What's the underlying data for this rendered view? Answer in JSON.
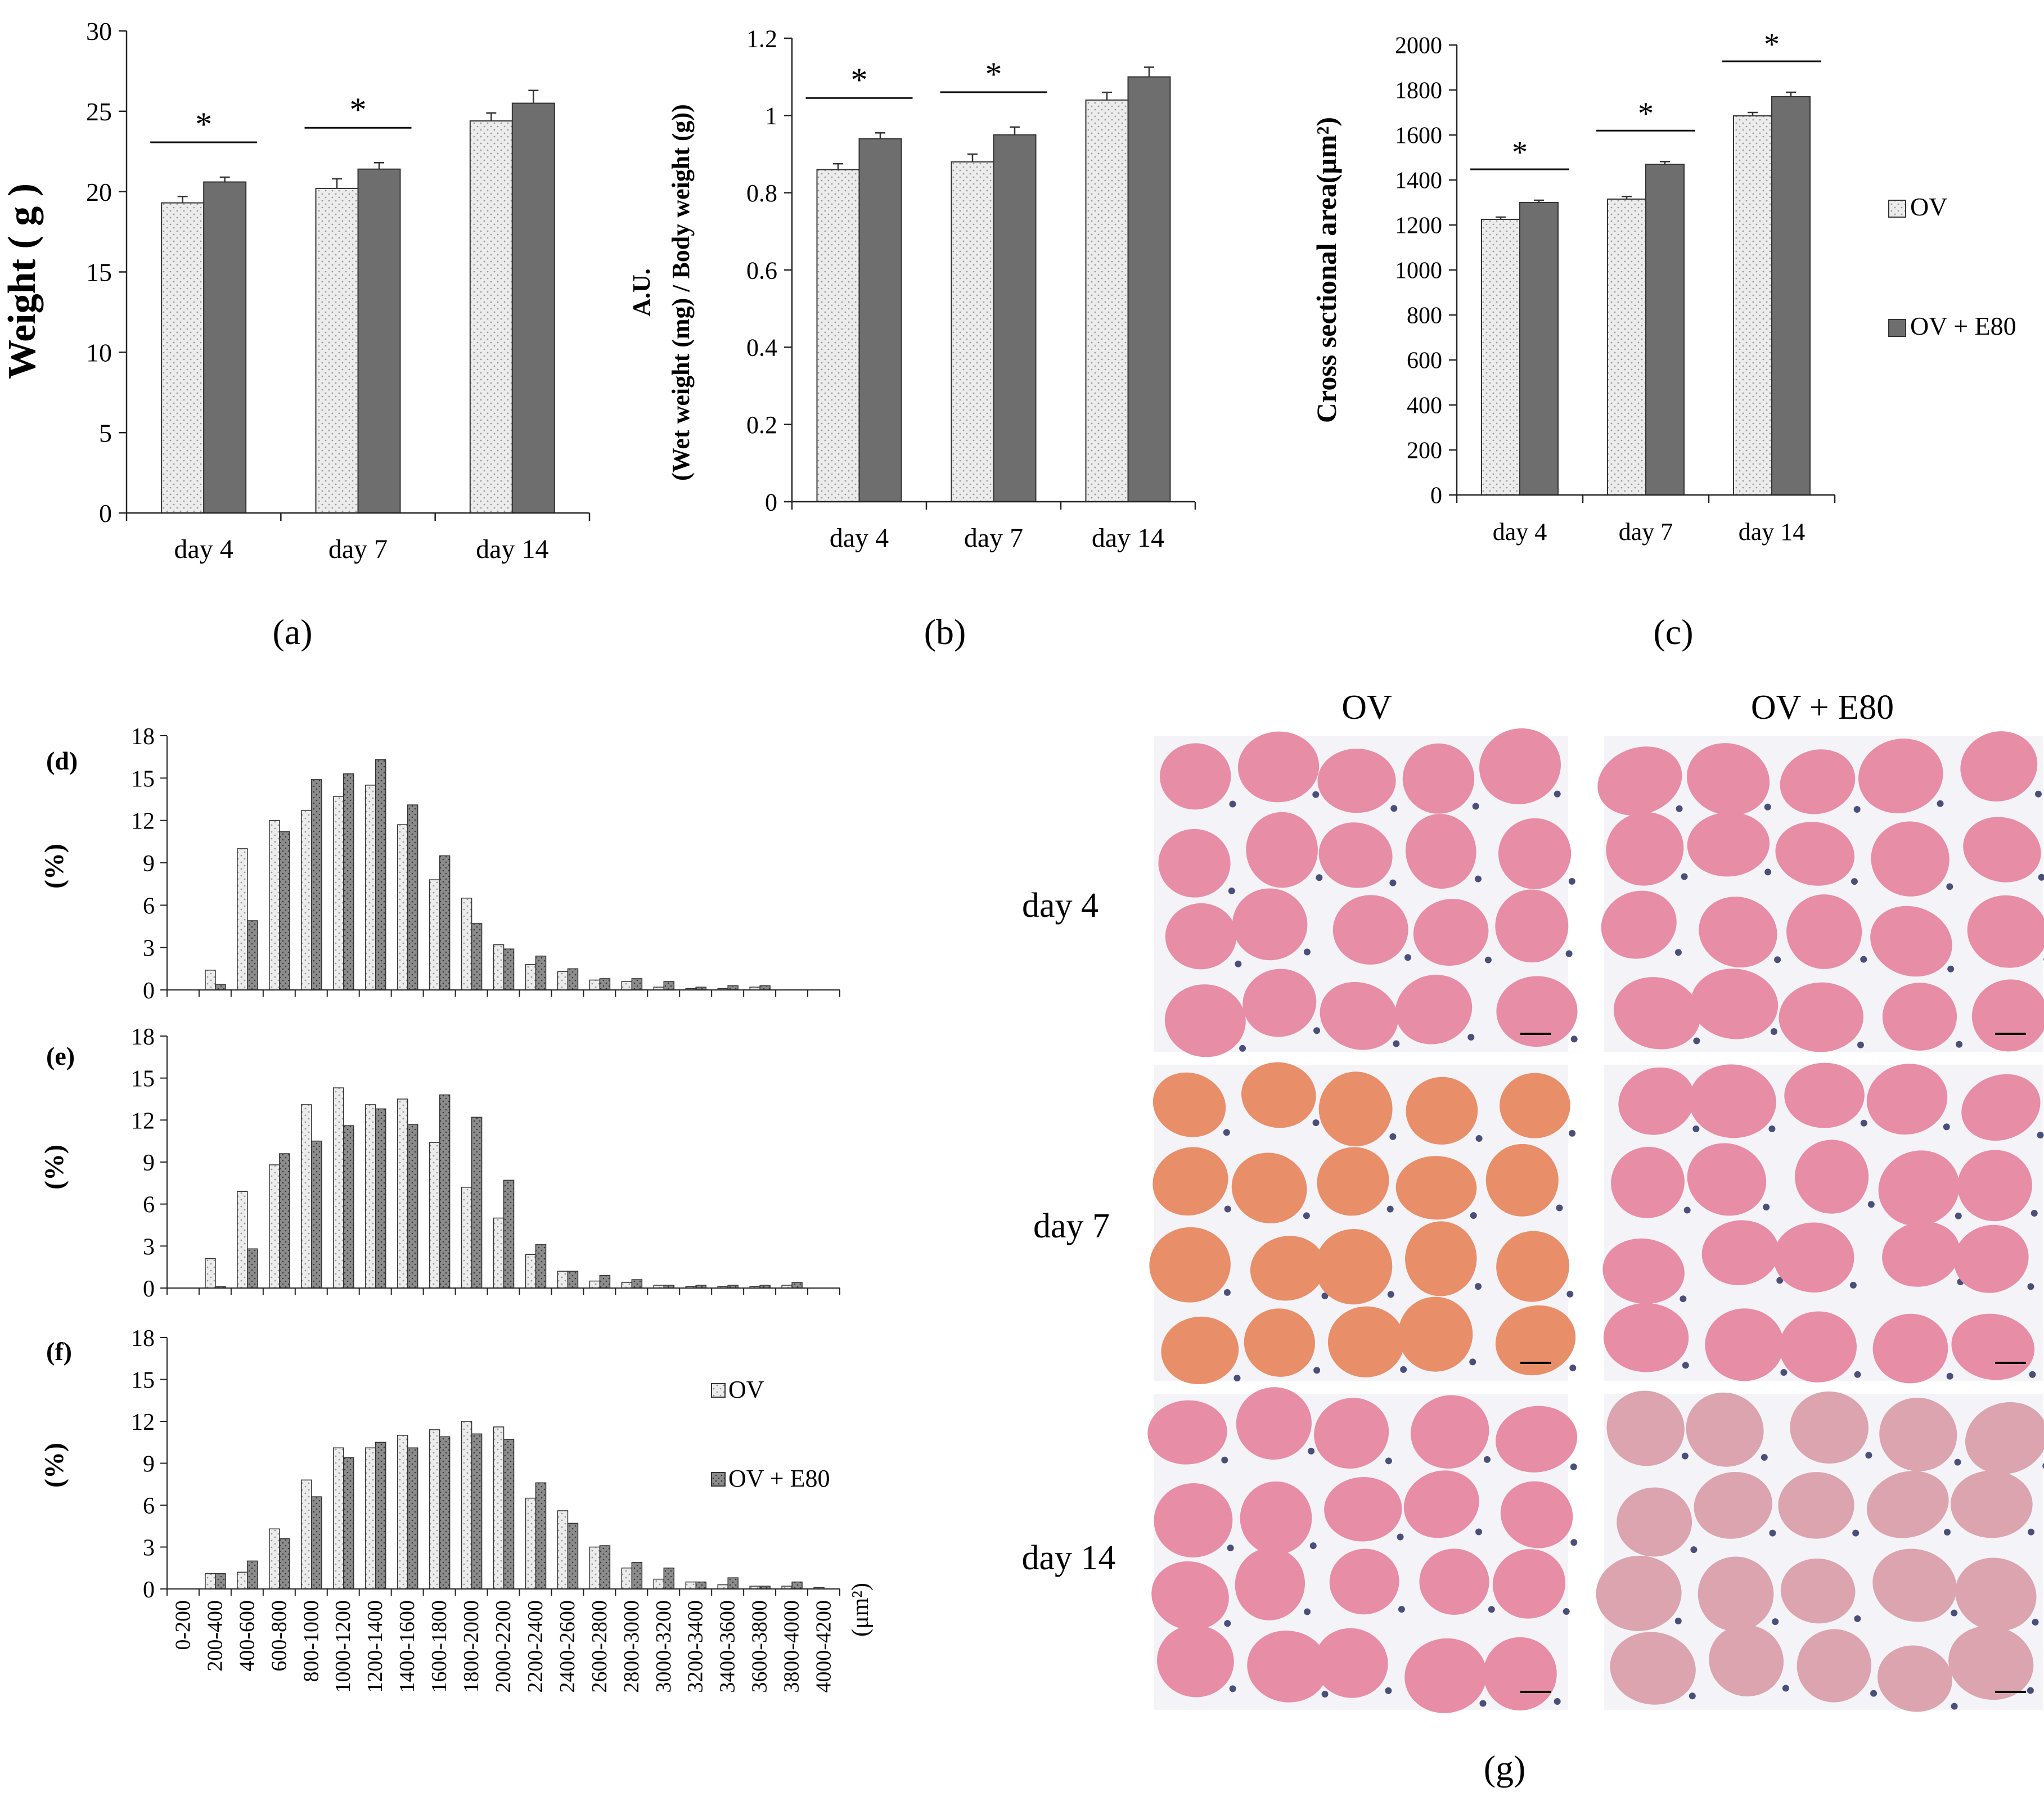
{
  "colors": {
    "ov_fill": "#ececec",
    "e80_fill": "#6e6e6e",
    "hist_e80_fill": "#8c8c8c",
    "axis": "#222222",
    "tissue_pink": "#e88da6",
    "tissue_orange": "#e88f6a",
    "stroma": "#f4f4f8",
    "nucleus": "#4a4f7a"
  },
  "legend": {
    "ov": "OV",
    "e80": "OV + E80"
  },
  "star": "*",
  "chart_data": [
    {
      "id": "a",
      "type": "bar",
      "panel_label": "(a)",
      "categories": [
        "day 4",
        "day 7",
        "day 14"
      ],
      "ylabel": "Weight ( g )",
      "ylim": [
        0,
        30
      ],
      "yticks": [
        0,
        5,
        10,
        15,
        20,
        25,
        30
      ],
      "series": [
        {
          "name": "OV",
          "values": [
            19.3,
            20.2,
            24.4
          ],
          "errors": [
            0.4,
            0.6,
            0.5
          ]
        },
        {
          "name": "OV + E80",
          "values": [
            20.6,
            21.4,
            25.5
          ],
          "errors": [
            0.3,
            0.4,
            0.8
          ]
        }
      ],
      "significance": [
        "*",
        "*",
        ""
      ]
    },
    {
      "id": "b",
      "type": "bar",
      "panel_label": "(b)",
      "categories": [
        "day 4",
        "day 7",
        "day 14"
      ],
      "ylabel": "A.U.",
      "ylabel2": "(Wet weight (mg) / Body weight (g))",
      "ylim": [
        0,
        1.2
      ],
      "yticks": [
        "0",
        "0.2",
        "0.4",
        "0.6",
        "0.8",
        "1",
        "1.2"
      ],
      "series": [
        {
          "name": "OV",
          "values": [
            0.86,
            0.88,
            1.04
          ],
          "errors": [
            0.015,
            0.02,
            0.02
          ]
        },
        {
          "name": "OV + E80",
          "values": [
            0.94,
            0.95,
            1.1
          ],
          "errors": [
            0.015,
            0.02,
            0.025
          ]
        }
      ],
      "significance": [
        "*",
        "*",
        ""
      ]
    },
    {
      "id": "c",
      "type": "bar",
      "panel_label": "(c)",
      "categories": [
        "day 4",
        "day 7",
        "day 14"
      ],
      "ylabel": "Cross sectional area(μm²)",
      "ylim": [
        0,
        2000
      ],
      "yticks": [
        0,
        200,
        400,
        600,
        800,
        1000,
        1200,
        1400,
        1600,
        1800,
        2000
      ],
      "series": [
        {
          "name": "OV",
          "values": [
            1225,
            1315,
            1685
          ],
          "errors": [
            10,
            12,
            15
          ]
        },
        {
          "name": "OV + E80",
          "values": [
            1300,
            1470,
            1770
          ],
          "errors": [
            10,
            12,
            20
          ]
        }
      ],
      "significance": [
        "*",
        "*",
        "*"
      ]
    },
    {
      "id": "d",
      "type": "bar",
      "panel_label": "(d)",
      "ylabel": "(%)",
      "ylim": [
        0,
        18
      ],
      "yticks": [
        0,
        3,
        6,
        9,
        12,
        15,
        18
      ],
      "series": [
        {
          "name": "OV",
          "values": [
            0,
            1.4,
            10.0,
            12.0,
            12.7,
            13.7,
            14.5,
            11.7,
            7.8,
            6.5,
            3.2,
            1.8,
            1.3,
            0.7,
            0.6,
            0.2,
            0.1,
            0.1,
            0.2,
            0,
            0
          ]
        },
        {
          "name": "OV + E80",
          "values": [
            0,
            0.4,
            4.9,
            11.2,
            14.9,
            15.3,
            16.3,
            13.1,
            9.5,
            4.7,
            2.9,
            2.4,
            1.5,
            0.8,
            0.8,
            0.6,
            0.2,
            0.3,
            0.3,
            0,
            0
          ]
        }
      ]
    },
    {
      "id": "e",
      "type": "bar",
      "panel_label": "(e)",
      "ylabel": "(%)",
      "ylim": [
        0,
        18
      ],
      "yticks": [
        0,
        3,
        6,
        9,
        12,
        15,
        18
      ],
      "series": [
        {
          "name": "OV",
          "values": [
            0,
            2.1,
            6.9,
            8.8,
            13.1,
            14.3,
            13.1,
            13.5,
            10.4,
            7.2,
            5.0,
            2.4,
            1.2,
            0.5,
            0.4,
            0.2,
            0.1,
            0.1,
            0.1,
            0.2,
            0
          ]
        },
        {
          "name": "OV + E80",
          "values": [
            0,
            0.1,
            2.8,
            9.6,
            10.5,
            11.6,
            12.8,
            11.7,
            13.8,
            12.2,
            7.7,
            3.1,
            1.2,
            0.9,
            0.6,
            0.2,
            0.2,
            0.2,
            0.2,
            0.4,
            0
          ]
        }
      ]
    },
    {
      "id": "f",
      "type": "bar",
      "panel_label": "(f)",
      "ylabel": "(%)",
      "ylim": [
        0,
        18
      ],
      "yticks": [
        0,
        3,
        6,
        9,
        12,
        15,
        18
      ],
      "categories": [
        "0-200",
        "200-400",
        "400-600",
        "600-800",
        "800-1000",
        "1000-1200",
        "1200-1400",
        "1400-1600",
        "1600-1800",
        "1800-2000",
        "2000-2200",
        "2200-2400",
        "2400-2600",
        "2600-2800",
        "2800-3000",
        "3000-3200",
        "3200-3400",
        "3400-3600",
        "3600-3800",
        "3800-4000",
        "4000-4200"
      ],
      "xunit": "(μm²)",
      "series": [
        {
          "name": "OV",
          "values": [
            0,
            1.1,
            1.2,
            4.3,
            7.8,
            10.1,
            10.1,
            11.0,
            11.4,
            12.0,
            11.6,
            6.5,
            5.6,
            3.0,
            1.5,
            0.7,
            0.5,
            0.3,
            0.2,
            0.2,
            0.1
          ]
        },
        {
          "name": "OV + E80",
          "values": [
            0,
            1.1,
            2.0,
            3.6,
            6.6,
            9.4,
            10.5,
            10.1,
            10.9,
            11.1,
            10.7,
            7.6,
            4.7,
            3.1,
            1.9,
            1.5,
            0.5,
            0.8,
            0.2,
            0.5,
            0
          ]
        }
      ]
    }
  ],
  "micrographs": {
    "panel_label": "(g)",
    "columns": [
      "OV",
      "OV + E80"
    ],
    "rows": [
      "day 4",
      "day 7",
      "day 14"
    ]
  }
}
